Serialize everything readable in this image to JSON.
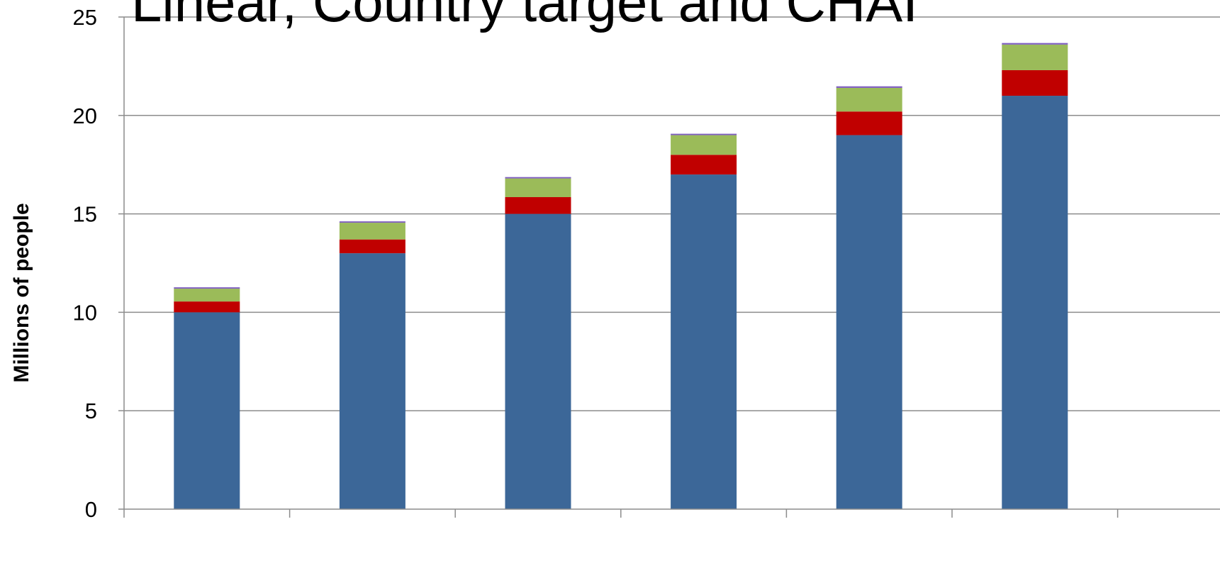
{
  "chart_data": {
    "type": "bar",
    "stacked": true,
    "title": "Linear, Country target and CHAI",
    "xlabel": "",
    "ylabel": "Millions of people",
    "ylim": [
      0,
      25
    ],
    "yticks": [
      0,
      5,
      10,
      15,
      20,
      25
    ],
    "grid": true,
    "categories": [
      "",
      "",
      "",
      "",
      "",
      ""
    ],
    "series": [
      {
        "color": "#3C6798",
        "values": [
          10,
          13,
          15,
          17,
          19,
          21
        ]
      },
      {
        "color": "#C00000",
        "values": [
          0.55,
          0.7,
          0.85,
          1.0,
          1.2,
          1.3
        ]
      },
      {
        "color": "#9BBB59",
        "values": [
          0.65,
          0.85,
          0.95,
          1.0,
          1.2,
          1.3
        ]
      },
      {
        "color": "#7F5FBF",
        "values": [
          0.07,
          0.07,
          0.07,
          0.07,
          0.08,
          0.08
        ]
      }
    ]
  }
}
